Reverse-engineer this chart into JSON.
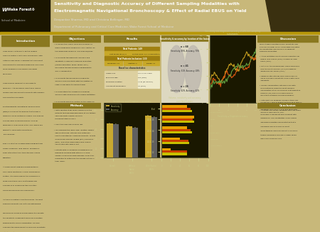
{
  "title_line1": "Sensitivity and Diagnostic Accuracy of Different Sampling Modalities with",
  "title_line2": "Electromagnetic Navigational Bronchoscopy & Effect of Radial EBUS on Yield",
  "author_line": "Deepankar Sharma, MD and Christina Bellinger, MD",
  "dept_line": "Department of Pulmonary and Critical Care Medicine, Wake Forest School of Medicine",
  "header_bg": "#2a2200",
  "header_text_color": "#ffffff",
  "poster_bg": "#c8b87a",
  "panel_bg": "#d4c88a",
  "section_header_bg": "#8a7820",
  "gold_stripe": "#b8980a",
  "bar1_cats": [
    "Overall",
    "Without\nRadial\nEBUS",
    "With Radial\nEBUS"
  ],
  "bar1_sensitivity": [
    72,
    65,
    88
  ],
  "bar1_accuracy": [
    70,
    63,
    85
  ],
  "bar1_color_sens": "#c8a830",
  "bar1_color_acc": "#606060",
  "bar2_groups": [
    "2011-12",
    "2012-13",
    "2013-14",
    "2014-15",
    "Total"
  ],
  "bar2_v1": [
    20,
    40,
    55,
    70,
    55
  ],
  "bar2_v2": [
    55,
    58,
    62,
    67,
    62
  ],
  "bar2_v3": [
    55,
    60,
    65,
    70,
    65
  ],
  "bar2_color1": "#e8a000",
  "bar2_color2": "#c84000",
  "bar2_color3": "#c8c000",
  "intro_title": "Introduction",
  "obj_title": "Objectives",
  "results_title": "Results",
  "methods_title": "Methods",
  "discussion_title": "Discussion",
  "conclusion_title": "Conclusion"
}
